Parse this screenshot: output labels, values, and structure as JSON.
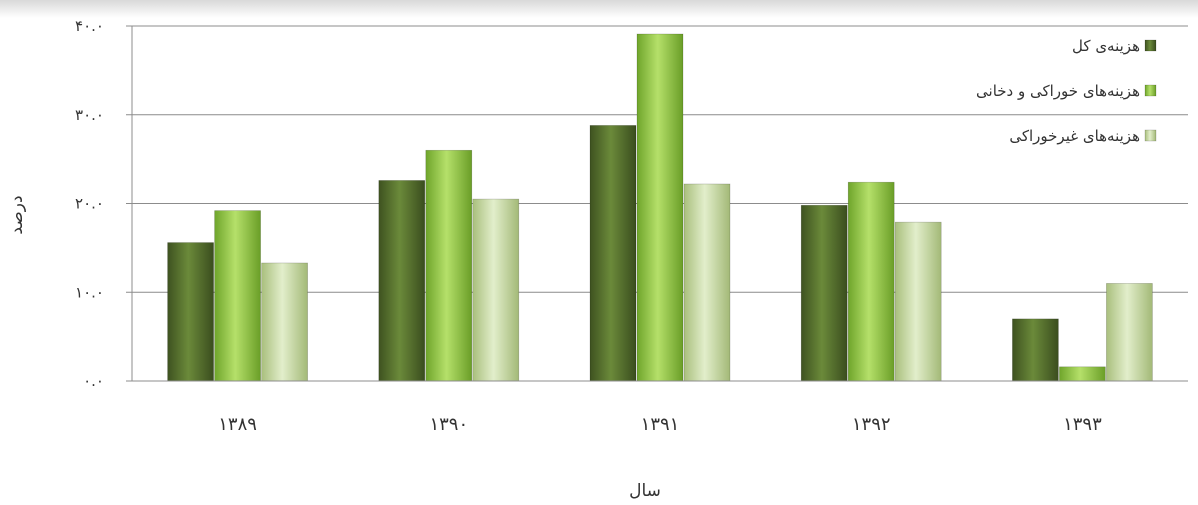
{
  "chart_data": {
    "type": "bar",
    "title": "",
    "xlabel": "سال",
    "ylabel": "درصد",
    "ylim": [
      0,
      40
    ],
    "ytick_values": [
      0,
      10,
      20,
      30,
      40
    ],
    "ytick_labels": [
      "۰.۰",
      "۱۰.۰",
      "۲۰.۰",
      "۳۰.۰",
      "۴۰.۰"
    ],
    "categories": [
      "۱۳۸۹",
      "۱۳۹۰",
      "۱۳۹۱",
      "۱۳۹۲",
      "۱۳۹۳"
    ],
    "series": [
      {
        "name": "هزینه‌ی کل",
        "color": "#556b2f",
        "values": [
          15.6,
          22.6,
          28.8,
          19.8,
          7.0
        ]
      },
      {
        "name": "هزینه‌های خوراکی و دخانی",
        "color": "#8dc63f",
        "values": [
          19.2,
          26.0,
          39.1,
          22.4,
          1.6
        ]
      },
      {
        "name": "هزینه‌های غیرخوراکی",
        "color": "#c7d9a0",
        "values": [
          13.3,
          20.5,
          22.2,
          17.9,
          11.0
        ]
      }
    ],
    "grid": true,
    "legend_position": "top-right"
  }
}
